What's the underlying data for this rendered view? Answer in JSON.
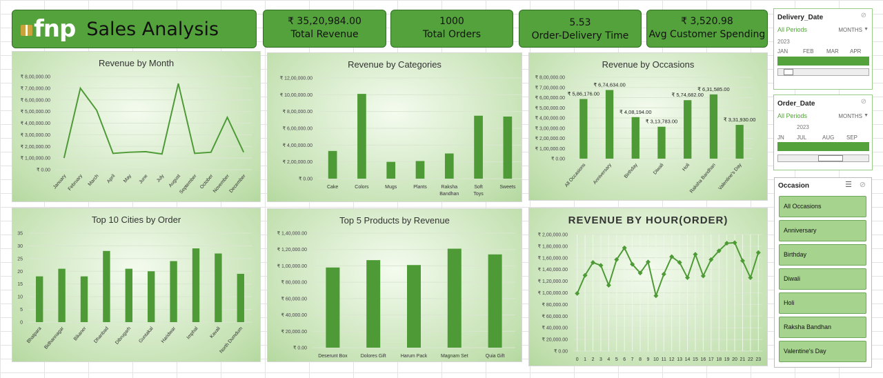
{
  "header": {
    "logo": "fnp",
    "title": "Sales Analysis"
  },
  "kpis": [
    {
      "value": "₹ 35,20,984.00",
      "label": "Total Revenue"
    },
    {
      "value": "1000",
      "label": "Total Orders"
    },
    {
      "value": "5.53",
      "label": "Order-Delivery Time"
    },
    {
      "value": "₹ 3,520.98",
      "label": "Avg Customer Spending"
    }
  ],
  "colors": {
    "accent": "#54a23b",
    "bar": "#4e9a36",
    "panel": "#c4e1b2"
  },
  "slicers": {
    "delivery": {
      "title": "Delivery_Date",
      "period": "All Periods",
      "mode": "MONTHS",
      "year": "2023",
      "months": [
        "JAN",
        "FEB",
        "MAR",
        "APR"
      ]
    },
    "order": {
      "title": "Order_Date",
      "period": "All Periods",
      "mode": "MONTHS",
      "year": "2023",
      "months": [
        "JN",
        "JUL",
        "AUG",
        "SEP"
      ]
    },
    "occasion": {
      "title": "Occasion",
      "items": [
        "All Occasions",
        "Anniversary",
        "Birthday",
        "Diwali",
        "Holi",
        "Raksha Bandhan",
        "Valentine's Day"
      ]
    }
  },
  "chart_data": [
    {
      "type": "line",
      "title": "Revenue by Month",
      "categories": [
        "January",
        "February",
        "March",
        "April",
        "May",
        "June",
        "July",
        "August",
        "September",
        "October",
        "November",
        "December"
      ],
      "values": [
        100000,
        700000,
        510000,
        140000,
        150000,
        155000,
        135000,
        740000,
        140000,
        150000,
        450000,
        150000
      ],
      "ylim": [
        0,
        800000
      ],
      "yticks": [
        "₹ 0.00",
        "₹ 1,00,000.00",
        "₹ 2,00,000.00",
        "₹ 3,00,000.00",
        "₹ 4,00,000.00",
        "₹ 5,00,000.00",
        "₹ 6,00,000.00",
        "₹ 7,00,000.00",
        "₹ 8,00,000.00"
      ]
    },
    {
      "type": "bar",
      "title": "Revenue by Categories",
      "categories": [
        "Cake",
        "Colors",
        "Mugs",
        "Plants",
        "Raksha Bandhan",
        "Soft Toys",
        "Sweets"
      ],
      "values": [
        330000,
        1010000,
        200000,
        210000,
        300000,
        750000,
        740000
      ],
      "ylim": [
        0,
        1200000
      ],
      "yticks": [
        "₹ 0.00",
        "₹ 2,00,000.00",
        "₹ 4,00,000.00",
        "₹ 6,00,000.00",
        "₹ 8,00,000.00",
        "₹ 10,00,000.00",
        "₹ 12,00,000.00"
      ]
    },
    {
      "type": "bar",
      "title": "Revenue by Occasions",
      "categories": [
        "All Occasions",
        "Anniversary",
        "Birthday",
        "Diwali",
        "Holi",
        "Raksha Bandhan",
        "Valentine's Day"
      ],
      "values": [
        586176,
        674634,
        408194,
        313783,
        574682,
        631585,
        331930
      ],
      "data_labels": [
        "₹ 5,86,176.00",
        "₹ 6,74,634.00",
        "₹ 4,08,194.00",
        "₹ 3,13,783.00",
        "₹ 5,74,682.00",
        "₹ 6,31,585.00",
        "₹ 3,31,930.00"
      ],
      "ylim": [
        0,
        800000
      ],
      "yticks": [
        "₹ 0.00",
        "₹ 1,00,000.00",
        "₹ 2,00,000.00",
        "₹ 3,00,000.00",
        "₹ 4,00,000.00",
        "₹ 5,00,000.00",
        "₹ 6,00,000.00",
        "₹ 7,00,000.00",
        "₹ 8,00,000.00"
      ]
    },
    {
      "type": "bar",
      "title": "Top 10 Cities by Order",
      "categories": [
        "Bhatpara",
        "Bidhannagar",
        "Bikaner",
        "Dhanbad",
        "Dibrugarh",
        "Guntakal",
        "Haridwar",
        "Imphal",
        "Kavali",
        "North Dumdum"
      ],
      "values": [
        18,
        21,
        18,
        28,
        21,
        20,
        24,
        29,
        27,
        19
      ],
      "ylim": [
        0,
        35
      ],
      "yticks": [
        "0",
        "5",
        "10",
        "15",
        "20",
        "25",
        "30",
        "35"
      ]
    },
    {
      "type": "bar",
      "title": "Top 5 Products by Revenue",
      "categories": [
        "Deserunt Box",
        "Dolores Gift",
        "Harum Pack",
        "Magnam Set",
        "Quia Gift"
      ],
      "values": [
        98000,
        107000,
        101000,
        121000,
        114000
      ],
      "ylim": [
        0,
        140000
      ],
      "yticks": [
        "₹ 0.00",
        "₹ 20,000.00",
        "₹ 40,000.00",
        "₹ 60,000.00",
        "₹ 80,000.00",
        "₹ 1,00,000.00",
        "₹ 1,20,000.00",
        "₹ 1,40,000.00"
      ]
    },
    {
      "type": "line",
      "title": "REVENUE BY HOUR(ORDER)",
      "categories": [
        "0",
        "1",
        "2",
        "3",
        "4",
        "5",
        "6",
        "7",
        "8",
        "9",
        "10",
        "11",
        "12",
        "13",
        "14",
        "15",
        "16",
        "17",
        "18",
        "19",
        "20",
        "21",
        "22",
        "23"
      ],
      "values": [
        99000,
        130000,
        152000,
        147000,
        113000,
        157000,
        177000,
        149000,
        134000,
        153000,
        95000,
        132000,
        162000,
        152000,
        126000,
        166000,
        129000,
        157000,
        172000,
        185000,
        186000,
        155000,
        126000,
        169000
      ],
      "ylim": [
        0,
        200000
      ],
      "yticks": [
        "₹ 0.00",
        "₹ 20,000.00",
        "₹ 40,000.00",
        "₹ 60,000.00",
        "₹ 80,000.00",
        "₹ 1,00,000.00",
        "₹ 1,20,000.00",
        "₹ 1,40,000.00",
        "₹ 1,60,000.00",
        "₹ 1,80,000.00",
        "₹ 2,00,000.00"
      ]
    }
  ]
}
